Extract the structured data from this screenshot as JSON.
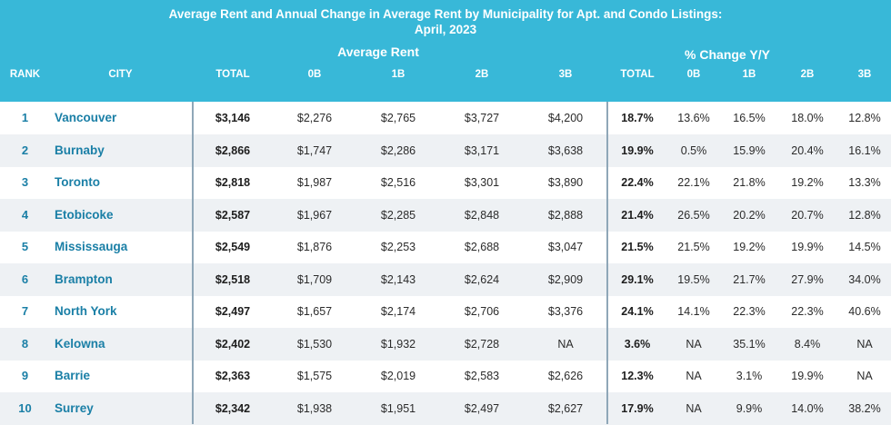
{
  "title_line1": "Average Rent and Annual Change in Average Rent by Municipality for Apt. and Condo Listings:",
  "title_line2": "April, 2023",
  "group_rent": "Average Rent",
  "group_change": "% Change Y/Y",
  "columns": [
    "RANK",
    "CITY",
    "TOTAL",
    "0B",
    "1B",
    "2B",
    "3B",
    "TOTAL",
    "0B",
    "1B",
    "2B",
    "3B"
  ],
  "rows": [
    [
      "1",
      "Vancouver",
      "$3,146",
      "$2,276",
      "$2,765",
      "$3,727",
      "$4,200",
      "18.7%",
      "13.6%",
      "16.5%",
      "18.0%",
      "12.8%"
    ],
    [
      "2",
      "Burnaby",
      "$2,866",
      "$1,747",
      "$2,286",
      "$3,171",
      "$3,638",
      "19.9%",
      "0.5%",
      "15.9%",
      "20.4%",
      "16.1%"
    ],
    [
      "3",
      "Toronto",
      "$2,818",
      "$1,987",
      "$2,516",
      "$3,301",
      "$3,890",
      "22.4%",
      "22.1%",
      "21.8%",
      "19.2%",
      "13.3%"
    ],
    [
      "4",
      "Etobicoke",
      "$2,587",
      "$1,967",
      "$2,285",
      "$2,848",
      "$2,888",
      "21.4%",
      "26.5%",
      "20.2%",
      "20.7%",
      "12.8%"
    ],
    [
      "5",
      "Mississauga",
      "$2,549",
      "$1,876",
      "$2,253",
      "$2,688",
      "$3,047",
      "21.5%",
      "21.5%",
      "19.2%",
      "19.9%",
      "14.5%"
    ],
    [
      "6",
      "Brampton",
      "$2,518",
      "$1,709",
      "$2,143",
      "$2,624",
      "$2,909",
      "29.1%",
      "19.5%",
      "21.7%",
      "27.9%",
      "34.0%"
    ],
    [
      "7",
      "North York",
      "$2,497",
      "$1,657",
      "$2,174",
      "$2,706",
      "$3,376",
      "24.1%",
      "14.1%",
      "22.3%",
      "22.3%",
      "40.6%"
    ],
    [
      "8",
      "Kelowna",
      "$2,402",
      "$1,530",
      "$1,932",
      "$2,728",
      "NA",
      "3.6%",
      "NA",
      "35.1%",
      "8.4%",
      "NA"
    ],
    [
      "9",
      "Barrie",
      "$2,363",
      "$1,575",
      "$2,019",
      "$2,583",
      "$2,626",
      "12.3%",
      "NA",
      "3.1%",
      "19.9%",
      "NA"
    ],
    [
      "10",
      "Surrey",
      "$2,342",
      "$1,938",
      "$1,951",
      "$2,497",
      "$2,627",
      "17.9%",
      "NA",
      "9.9%",
      "14.0%",
      "38.2%"
    ]
  ],
  "colors": {
    "header_bg": "#38b8d8",
    "row_alt_bg": "#eef1f4",
    "accent_text": "#1a7fa6"
  }
}
